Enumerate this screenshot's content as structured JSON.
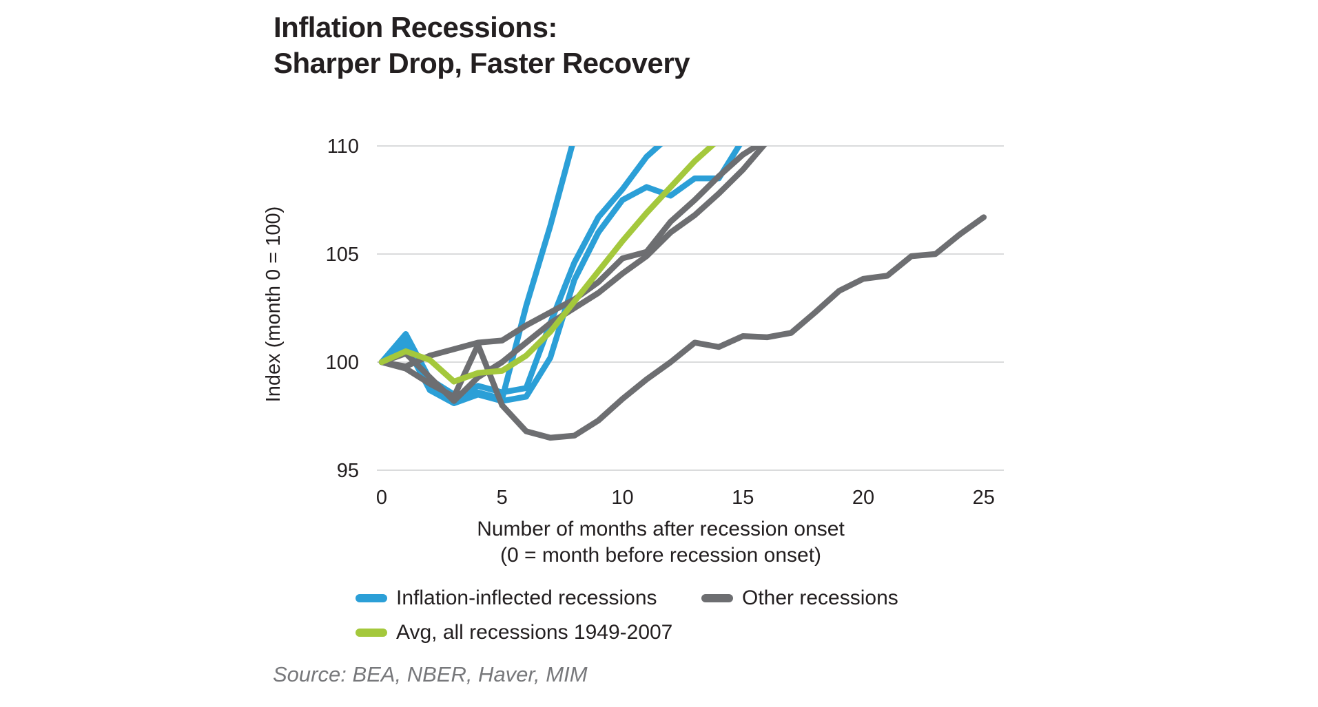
{
  "title": {
    "line1": "Inflation Recessions:",
    "line2": "Sharper Drop, Faster Recovery"
  },
  "axes": {
    "y_title": "Index (month 0 = 100)",
    "y_ticks": [
      95,
      100,
      105,
      110
    ],
    "x_ticks": [
      0,
      5,
      10,
      15,
      20,
      25
    ],
    "x_label_line1": "Number of months after recession onset",
    "x_label_line2": "(0 = month before recession onset)"
  },
  "legend": [
    {
      "label": "Inflation-inflected recessions",
      "color_key": "blue"
    },
    {
      "label": "Other recessions",
      "color_key": "gray"
    },
    {
      "label": "Avg, all recessions 1949-2007",
      "color_key": "green"
    }
  ],
  "source": "Source: BEA, NBER, Haver, MIM",
  "colors": {
    "blue": "#2B9FD7",
    "gray": "#6D6E71",
    "green": "#A4C83C",
    "text": "#231F20",
    "gridline": "#DADBDC",
    "source_text": "#77787B"
  },
  "chart_data": {
    "type": "line",
    "title": "Inflation Recessions: Sharper Drop, Faster Recovery",
    "xlabel": "Number of months after recession onset (0 = month before recession onset)",
    "ylabel": "Index (month 0 = 100)",
    "xlim": [
      0,
      25
    ],
    "ylim": [
      95,
      110
    ],
    "grid": "horizontal-only",
    "legend_position": "bottom",
    "x_step_months": 1,
    "note": "All series start at month 0 = 100; values above 110 are clipped at the top gridline",
    "series": [
      {
        "name": "inflation-recession-1",
        "group": "Inflation-inflected recessions",
        "color_key": "blue",
        "values": [
          100,
          101.3,
          99.2,
          98.5,
          98.6,
          98.3,
          102.6,
          106.3,
          110.4
        ]
      },
      {
        "name": "inflation-recession-2",
        "group": "Inflation-inflected recessions",
        "color_key": "blue",
        "values": [
          100,
          101.0,
          98.9,
          98.3,
          98.9,
          98.6,
          98.8,
          101.8,
          104.6,
          106.7,
          108.0,
          109.5,
          110.5
        ]
      },
      {
        "name": "inflation-recession-3",
        "group": "Inflation-inflected recessions",
        "color_key": "blue",
        "values": [
          100,
          100.8,
          98.7,
          98.1,
          98.5,
          98.2,
          98.4,
          100.2,
          103.8,
          106.0,
          107.5,
          108.1,
          107.7,
          108.5,
          108.5,
          110.3
        ]
      },
      {
        "name": "other-recession-1",
        "group": "Other recessions",
        "color_key": "gray",
        "values": [
          100,
          99.8,
          100.3,
          100.6,
          100.9,
          101.0,
          101.7,
          102.3,
          102.9,
          103.7,
          104.8,
          105.1,
          106.5,
          107.5,
          108.6,
          109.6,
          110.3
        ]
      },
      {
        "name": "other-recession-2",
        "group": "Other recessions",
        "color_key": "gray",
        "values": [
          100,
          100.4,
          99.3,
          98.2,
          99.3,
          100.0,
          100.9,
          101.8,
          102.5,
          103.2,
          104.1,
          104.9,
          106.0,
          106.8,
          107.8,
          108.9,
          110.2
        ]
      },
      {
        "name": "other-recession-3",
        "group": "Other recessions",
        "color_key": "gray",
        "values": [
          100,
          99.7,
          99.0,
          98.4,
          100.8,
          98.0,
          96.8,
          96.5,
          96.6,
          97.3,
          98.3,
          99.2,
          100.0,
          100.9,
          100.7,
          101.2,
          101.15,
          101.35,
          102.3,
          103.3,
          103.85,
          104.0,
          104.9,
          105.0,
          105.9,
          106.7
        ]
      },
      {
        "name": "avg-all-recessions",
        "group": "Avg, all recessions 1949-2007",
        "color_key": "green",
        "values": [
          100,
          100.5,
          100.1,
          99.1,
          99.5,
          99.6,
          100.3,
          101.4,
          102.8,
          104.2,
          105.6,
          106.9,
          108.1,
          109.3,
          110.3
        ]
      }
    ]
  }
}
